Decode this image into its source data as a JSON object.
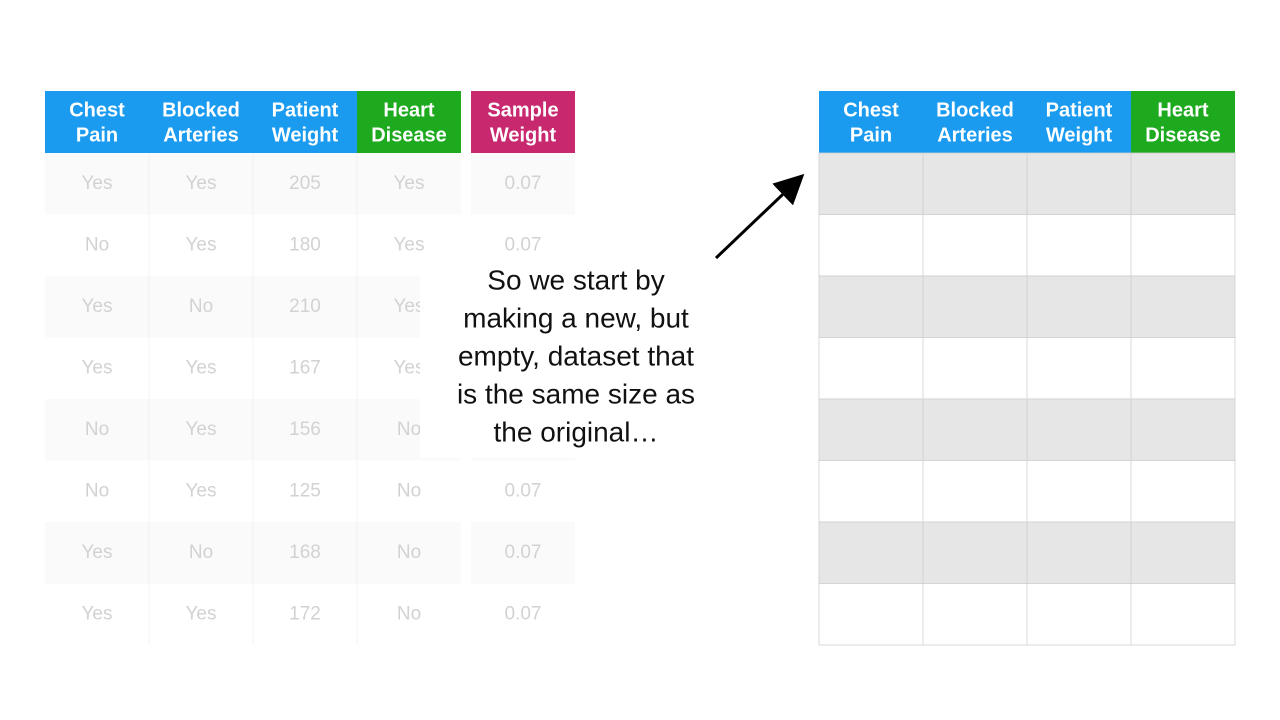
{
  "left_table": {
    "headers": [
      [
        "Chest",
        "Pain"
      ],
      [
        "Blocked",
        "Arteries"
      ],
      [
        "Patient",
        "Weight"
      ],
      [
        "Heart",
        "Disease"
      ]
    ],
    "rows": [
      [
        "Yes",
        "Yes",
        "205",
        "Yes"
      ],
      [
        "No",
        "Yes",
        "180",
        "Yes"
      ],
      [
        "Yes",
        "No",
        "210",
        "Yes"
      ],
      [
        "Yes",
        "Yes",
        "167",
        "Yes"
      ],
      [
        "No",
        "Yes",
        "156",
        "No"
      ],
      [
        "No",
        "Yes",
        "125",
        "No"
      ],
      [
        "Yes",
        "No",
        "168",
        "No"
      ],
      [
        "Yes",
        "Yes",
        "172",
        "No"
      ]
    ]
  },
  "sample_weight": {
    "header": [
      "Sample",
      "Weight"
    ],
    "values": [
      "0.07",
      "0.07",
      null,
      null,
      null,
      "0.07",
      "0.07",
      "0.07"
    ]
  },
  "callout": {
    "lines": [
      "So we start by",
      "making a new, but",
      "empty, dataset that",
      "is the same size as",
      "the original…"
    ]
  },
  "right_table": {
    "headers": [
      [
        "Chest",
        "Pain"
      ],
      [
        "Blocked",
        "Arteries"
      ],
      [
        "Patient",
        "Weight"
      ],
      [
        "Heart",
        "Disease"
      ]
    ]
  }
}
